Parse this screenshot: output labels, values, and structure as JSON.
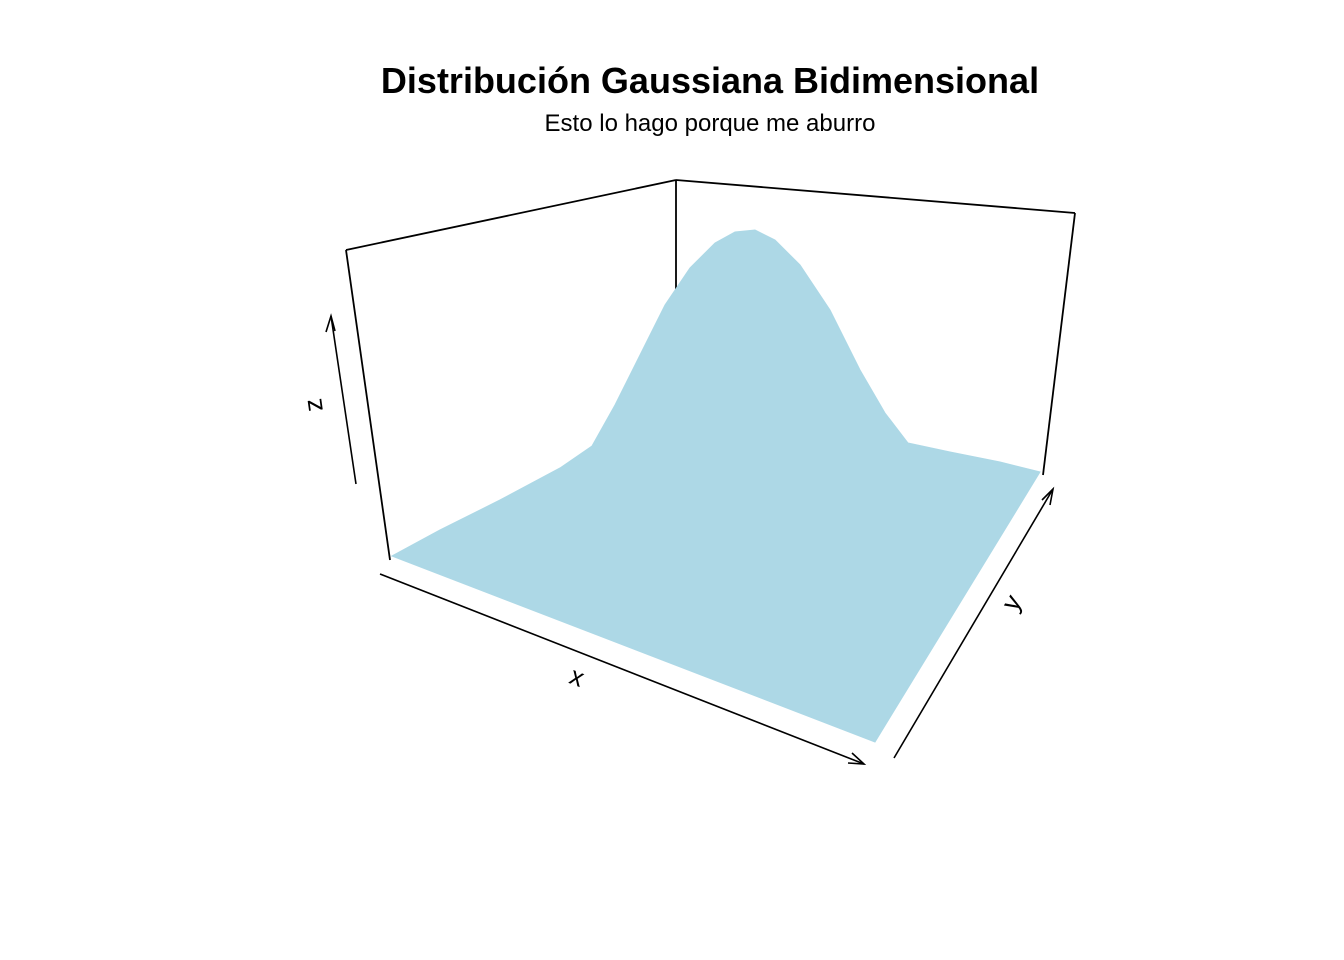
{
  "chart_data": {
    "type": "surface-3d",
    "title": "Distribución Gaussiana Bidimensional",
    "subtitle": "Esto lo hago porque me aburro",
    "xlabel": "x",
    "ylabel": "y",
    "zlabel": "z",
    "surface_color": "#ADD8E6",
    "function": "bivariate normal density, peak at center",
    "x_range": [
      -3,
      3
    ],
    "y_range": [
      -3,
      3
    ],
    "theta": 30,
    "phi": 20
  }
}
